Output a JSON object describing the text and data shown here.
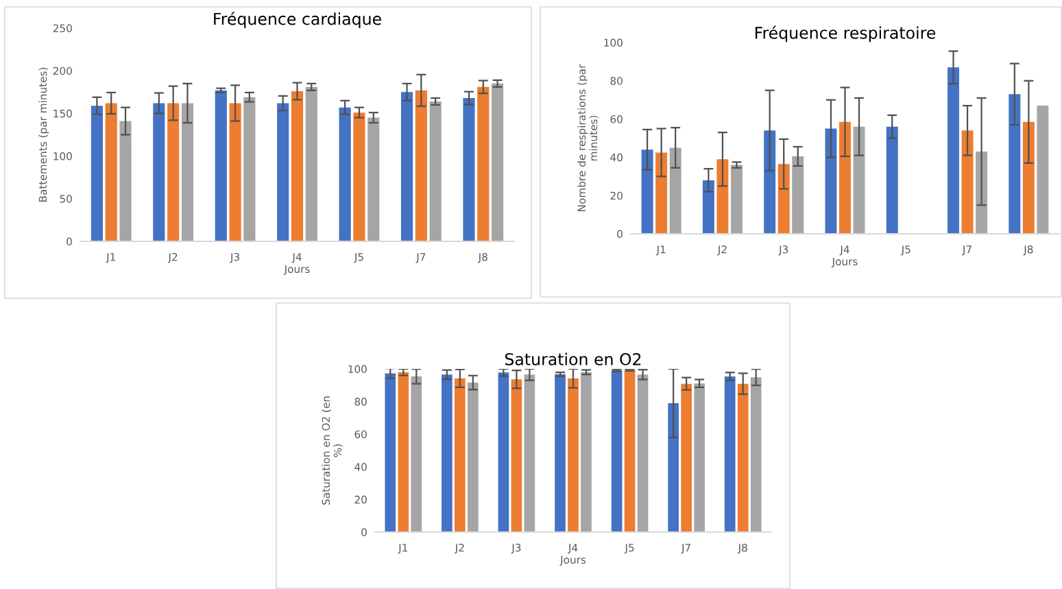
{
  "chart_data": [
    {
      "type": "bar",
      "title": "Fréquence cardiaque",
      "xlabel": "Jours",
      "ylabel": "Battements (par minutes)",
      "categories": [
        "J1",
        "J2",
        "J3",
        "J4",
        "J5",
        "J7",
        "J8"
      ],
      "ylim": [
        0,
        250
      ],
      "yticks": [
        0,
        50,
        100,
        150,
        200,
        250
      ],
      "grid": false,
      "legend": false,
      "series": [
        {
          "color": "#4472c4",
          "values": [
            159,
            162,
            177,
            162,
            157,
            175,
            168
          ],
          "errors": [
            10,
            12,
            2.5,
            8.5,
            8,
            10,
            7.5
          ]
        },
        {
          "color": "#ed7d31",
          "values": [
            162,
            162,
            162,
            176,
            151,
            177,
            181
          ],
          "errors": [
            12.5,
            20,
            21,
            10,
            6,
            18.5,
            7.5
          ]
        },
        {
          "color": "#a5a5a5",
          "values": [
            141,
            162,
            169,
            181,
            145,
            164,
            185
          ],
          "errors": [
            16,
            23,
            5.5,
            4,
            6,
            4,
            4
          ]
        }
      ]
    },
    {
      "type": "bar",
      "title": "Fréquence respiratoire",
      "xlabel": "Jours",
      "ylabel": "Nombre de respirations (par minutes)",
      "categories": [
        "J1",
        "J2",
        "J3",
        "J4",
        "J5",
        "J7",
        "J8"
      ],
      "ylim": [
        0,
        100
      ],
      "yticks": [
        0,
        20,
        40,
        60,
        80,
        100
      ],
      "grid": false,
      "legend": false,
      "series": [
        {
          "color": "#4472c4",
          "values": [
            44,
            28,
            54,
            55,
            56,
            87,
            73
          ],
          "errors": [
            10.5,
            6,
            21,
            15,
            6,
            8.5,
            16
          ]
        },
        {
          "color": "#ed7d31",
          "values": [
            42.5,
            39,
            36.5,
            58.5,
            null,
            54,
            58.5
          ],
          "errors": [
            12.5,
            14,
            13,
            18,
            null,
            13,
            21.5
          ]
        },
        {
          "color": "#a5a5a5",
          "values": [
            45,
            36,
            40.5,
            56,
            null,
            43,
            67
          ],
          "errors": [
            10.5,
            1.5,
            5,
            15,
            null,
            28,
            null
          ]
        }
      ]
    },
    {
      "type": "bar",
      "title": "Saturation en O2",
      "xlabel": "Jours",
      "ylabel": "Saturation en O2 (en %)",
      "categories": [
        "J1",
        "J2",
        "J3",
        "J4",
        "J5",
        "J7",
        "J8"
      ],
      "ylim": [
        0,
        100
      ],
      "yticks": [
        0,
        20,
        40,
        60,
        80,
        100
      ],
      "grid": false,
      "legend": false,
      "series": [
        {
          "color": "#4472c4",
          "values": [
            97.3,
            96.5,
            97.8,
            96.7,
            99.1,
            79,
            95.4
          ],
          "errors": [
            3,
            2.8,
            2.2,
            1.2,
            0.6,
            21,
            2.4
          ]
        },
        {
          "color": "#ed7d31",
          "values": [
            98,
            94.2,
            93.6,
            94.2,
            99.3,
            90.9,
            90.9
          ],
          "errors": [
            2,
            5.5,
            5.5,
            5.8,
            0.5,
            3.8,
            6.4
          ]
        },
        {
          "color": "#a5a5a5",
          "values": [
            95.4,
            91.6,
            96.5,
            98,
            96.5,
            91.1,
            94.9
          ],
          "errors": [
            4.5,
            4.3,
            3.5,
            1.4,
            3,
            2.4,
            5
          ]
        }
      ]
    }
  ]
}
